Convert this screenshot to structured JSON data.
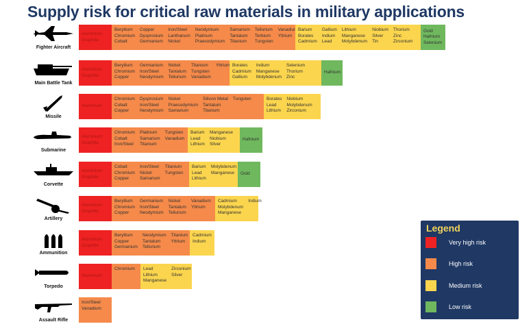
{
  "title": "Supply risk for critical raw materials in military applications",
  "colors": {
    "very_high": "#ee2222",
    "high": "#f58a4a",
    "medium": "#fbd54e",
    "low": "#6fb85e",
    "legend_bg": "#1f3864",
    "title": "#1f3864"
  },
  "legend": {
    "title": "Legend",
    "items": [
      {
        "label": "Very high risk",
        "color": "#ee2222"
      },
      {
        "label": "High risk",
        "color": "#f58a4a"
      },
      {
        "label": "Medium risk",
        "color": "#fbd54e"
      },
      {
        "label": "Low risk",
        "color": "#6fb85e"
      }
    ]
  },
  "chart_data": {
    "type": "table",
    "title": "Supply risk for critical raw materials in military applications",
    "rows": [
      {
        "application": "Fighter Aircraft",
        "icon": "fighter-jet-icon",
        "segments": [
          {
            "risk": "very_high",
            "columns": [
              [
                "Aluminium",
                "Graphite"
              ]
            ]
          },
          {
            "risk": "high",
            "columns": [
              [
                "Beryllium",
                "Chromium",
                "Cobalt"
              ],
              [
                "Copper",
                "Dysprosium",
                "Germanium"
              ],
              [
                "Iron/Steel",
                "Lanthanum",
                "Nickel"
              ],
              [
                "Neodymium",
                "Platinum",
                "Praesodymium"
              ],
              [
                "Samarium",
                "Tantalum",
                "Titanium"
              ],
              [
                "Tellurium",
                "Terbium",
                "Tungsten"
              ],
              [
                "Vanadium",
                "Yttrium"
              ]
            ]
          },
          {
            "risk": "medium",
            "columns": [
              [
                "Barium",
                "Borates",
                "Cadmium"
              ],
              [
                "Gallium",
                "Indium",
                "Lead"
              ],
              [
                "Lithium",
                "Manganese",
                "Molybdenum"
              ],
              [
                "Niobium",
                "Silver",
                "Tin"
              ],
              [
                "Thorium",
                "Zinc",
                "Zirconium"
              ]
            ]
          },
          {
            "risk": "low",
            "columns": [
              [
                "Gold",
                "Hafnium",
                "Selenium"
              ]
            ]
          }
        ]
      },
      {
        "application": "Main Battle Tank",
        "icon": "tank-icon",
        "segments": [
          {
            "risk": "very_high",
            "columns": [
              [
                "Aluminium",
                "Graphite"
              ]
            ]
          },
          {
            "risk": "high",
            "columns": [
              [
                "Beryllium",
                "Chromium",
                "Copper"
              ],
              [
                "Germanium",
                "Iron/Steel",
                "Neodymium"
              ],
              [
                "Nickel",
                "Tantalum",
                "Tellurium"
              ],
              [
                "Titanium",
                "Tungsten",
                "Vanadium"
              ],
              [
                "Yttrium"
              ]
            ]
          },
          {
            "risk": "medium",
            "columns": [
              [
                "Borates",
                "Cadmium",
                "Gallium"
              ],
              [
                "Indium",
                "Manganese",
                "Molybdenum"
              ],
              [
                "Selenium",
                "Thorium",
                "Zinc"
              ]
            ]
          },
          {
            "risk": "low",
            "columns": [
              [
                "Hafnium"
              ]
            ]
          }
        ]
      },
      {
        "application": "Missile",
        "icon": "missile-icon",
        "segments": [
          {
            "risk": "very_high",
            "columns": [
              [
                "Aluminium"
              ]
            ]
          },
          {
            "risk": "high",
            "columns": [
              [
                "Chromium",
                "Cobalt",
                "Copper"
              ],
              [
                "Dysprosium",
                "Iron/Steel",
                "Neodymium"
              ],
              [
                "Nickel",
                "Praesodymium",
                "Samarium"
              ],
              [
                "Silicon Metal",
                "Tantalum",
                "Titanium"
              ],
              [
                "Tungsten"
              ]
            ]
          },
          {
            "risk": "medium",
            "columns": [
              [
                "Borates",
                "Lead",
                "Lithium"
              ],
              [
                "Niobium",
                "Molybdenum",
                "Zirconium"
              ]
            ]
          }
        ]
      },
      {
        "application": "Submarine",
        "icon": "submarine-icon",
        "segments": [
          {
            "risk": "very_high",
            "columns": [
              [
                "Aluminium",
                "Graphite"
              ]
            ]
          },
          {
            "risk": "high",
            "columns": [
              [
                "Chromium",
                "Cobalt",
                "Iron/Steel"
              ],
              [
                "Platinum",
                "Samarium",
                "Titanium"
              ],
              [
                "Tungsten",
                "Vanadium"
              ]
            ]
          },
          {
            "risk": "medium",
            "columns": [
              [
                "Barium",
                "Lead",
                "Lithium"
              ],
              [
                "Manganese",
                "Niobium",
                "Silver"
              ]
            ]
          },
          {
            "risk": "low",
            "columns": [
              [
                "Hafnium"
              ]
            ]
          }
        ]
      },
      {
        "application": "Corvette",
        "icon": "corvette-icon",
        "segments": [
          {
            "risk": "very_high",
            "columns": [
              [
                "Aluminium",
                "Graphite"
              ]
            ]
          },
          {
            "risk": "high",
            "columns": [
              [
                "Cobalt",
                "Chromium",
                "Copper"
              ],
              [
                "Iron/Steel",
                "Nickel",
                "Samarium"
              ],
              [
                "Titanium",
                "Tungsten"
              ]
            ]
          },
          {
            "risk": "medium",
            "columns": [
              [
                "Barium",
                "Lead",
                "Lithium"
              ],
              [
                "Molybdenum",
                "Manganese"
              ]
            ]
          },
          {
            "risk": "low",
            "columns": [
              [
                "Gold"
              ]
            ]
          }
        ]
      },
      {
        "application": "Artillery",
        "icon": "artillery-icon",
        "segments": [
          {
            "risk": "very_high",
            "columns": [
              [
                "Aluminium",
                "Graphite"
              ]
            ]
          },
          {
            "risk": "high",
            "columns": [
              [
                "Beryllium",
                "Chromium",
                "Copper"
              ],
              [
                "Germanium",
                "Iron/Steel",
                "Neodymium"
              ],
              [
                "Nickel",
                "Tantalum",
                "Tellurium"
              ],
              [
                "Vanadium",
                "Yttrium"
              ]
            ]
          },
          {
            "risk": "medium",
            "columns": [
              [
                "Cadmium",
                "Molybdenum",
                "Manganese"
              ],
              [
                "Indium"
              ]
            ]
          }
        ]
      },
      {
        "application": "Ammunition",
        "icon": "ammunition-icon",
        "segments": [
          {
            "risk": "very_high",
            "columns": [
              [
                "Aluminium",
                "Graphite"
              ]
            ]
          },
          {
            "risk": "high",
            "columns": [
              [
                "Beryllium",
                "Copper",
                "Germanium"
              ],
              [
                "Neodymium",
                "Tantalum",
                "Tellurium"
              ],
              [
                "Titanium",
                "Yttrium"
              ]
            ]
          },
          {
            "risk": "medium",
            "columns": [
              [
                "Cadmium",
                "Indium"
              ]
            ]
          }
        ]
      },
      {
        "application": "Torpedo",
        "icon": "torpedo-icon",
        "segments": [
          {
            "risk": "very_high",
            "columns": [
              [
                "Aluminium"
              ]
            ]
          },
          {
            "risk": "high",
            "columns": [
              [
                "Chromium"
              ]
            ]
          },
          {
            "risk": "medium",
            "columns": [
              [
                "Lead",
                "Lithium",
                "Manganese"
              ],
              [
                "Zirconium",
                "Silver"
              ]
            ]
          }
        ]
      },
      {
        "application": "Assault Rifle",
        "icon": "rifle-icon",
        "segments": [
          {
            "risk": "high",
            "columns": [
              [
                "Iron/Steel",
                "Vanadium"
              ]
            ]
          }
        ]
      }
    ]
  }
}
